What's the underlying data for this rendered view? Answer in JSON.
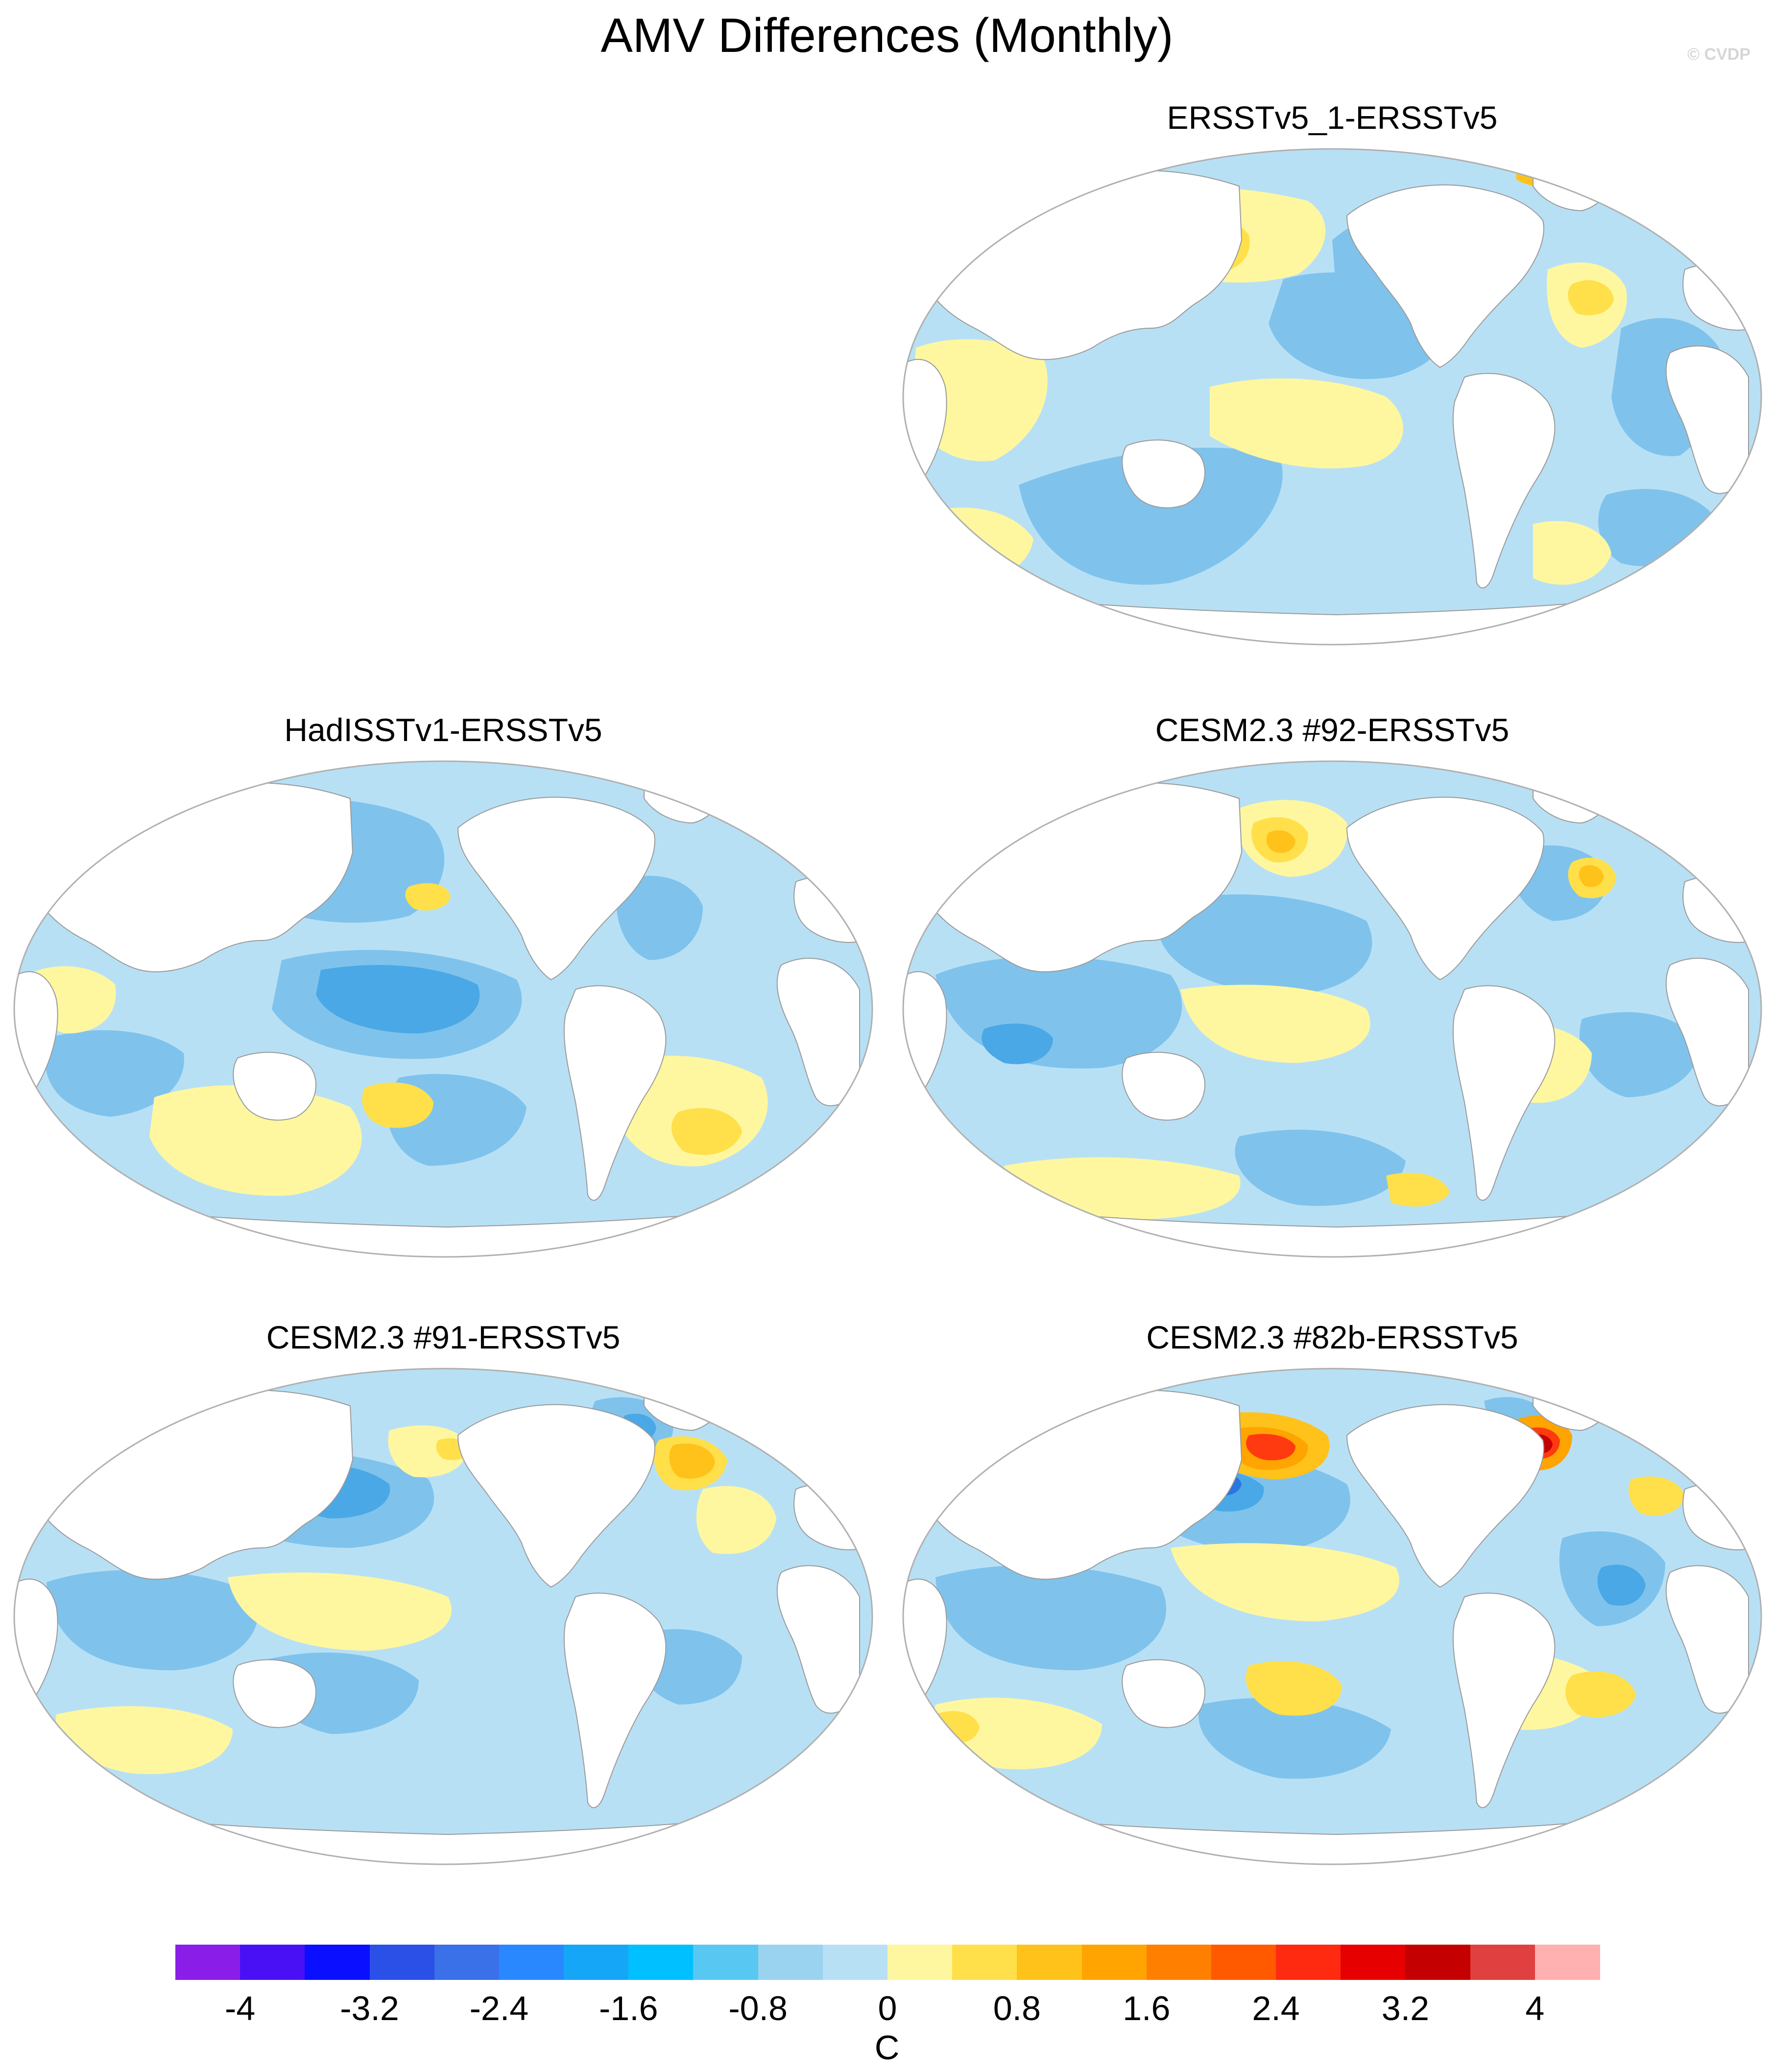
{
  "figure": {
    "title": "AMV Differences (Monthly)",
    "credit": "© CVDP"
  },
  "panels": [
    {
      "id": "p1",
      "title": "ERSSTv5_1-ERSSTv5"
    },
    {
      "id": "p2",
      "title": "HadISSTv1-ERSSTv5"
    },
    {
      "id": "p3",
      "title": "CESM2.3 #92-ERSSTv5"
    },
    {
      "id": "p4",
      "title": "CESM2.3 #91-ERSSTv5"
    },
    {
      "id": "p5",
      "title": "CESM2.3 #82b-ERSSTv5"
    }
  ],
  "colorbar": {
    "unit": "C",
    "ticks": [
      "-4",
      "-3.2",
      "-2.4",
      "-1.6",
      "-0.8",
      "0",
      "0.8",
      "1.6",
      "2.4",
      "3.2",
      "4"
    ],
    "colors": [
      "#8a1ee8",
      "#4a10f5",
      "#0a10ff",
      "#2a50e8",
      "#3a70e8",
      "#2a88ff",
      "#16a6f7",
      "#00c0ff",
      "#58c8f2",
      "#9ad3f0",
      "#b8e0f5",
      "#fff7a0",
      "#ffe04a",
      "#ffc21a",
      "#ffa400",
      "#ff8000",
      "#ff5a00",
      "#ff2a10",
      "#e60000",
      "#c40000",
      "#e04040",
      "#ffb0b0"
    ]
  }
}
